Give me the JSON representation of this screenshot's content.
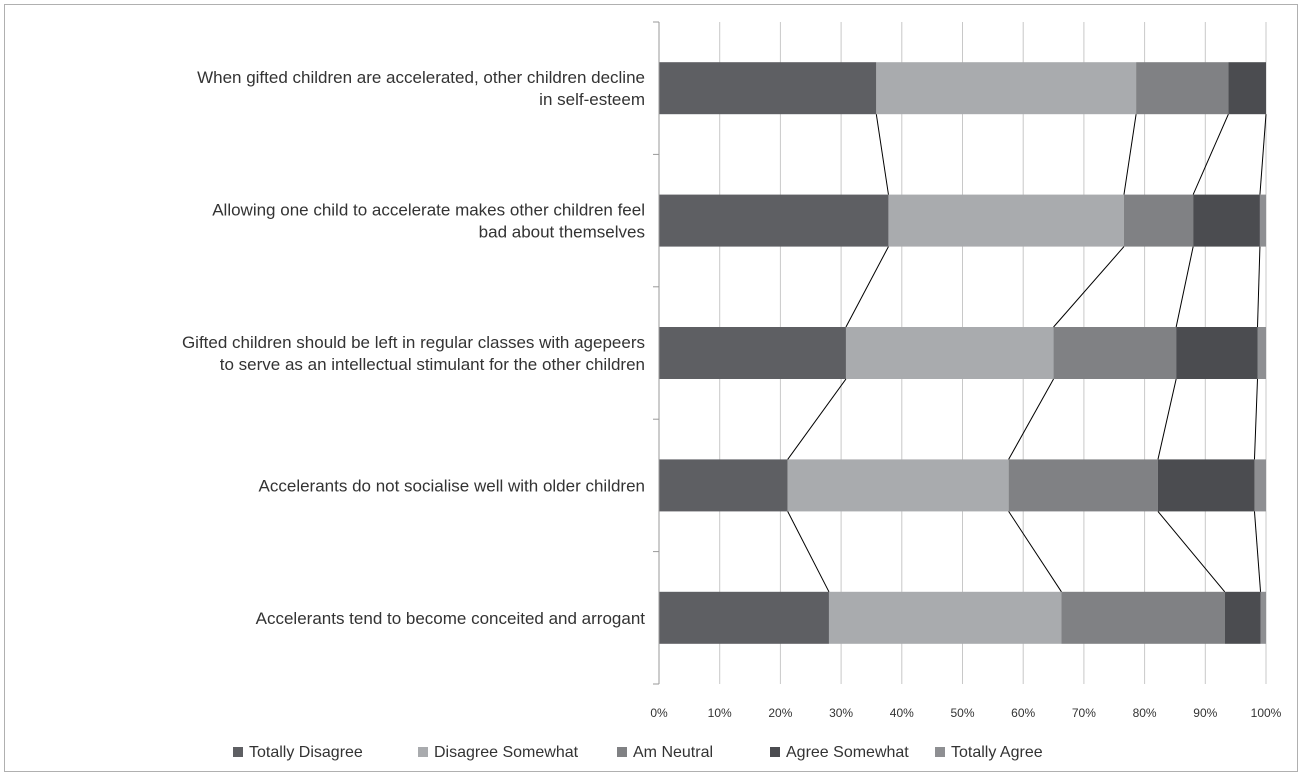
{
  "chart_data": {
    "type": "bar",
    "orientation": "horizontal",
    "stacked": "percent",
    "title": "",
    "xlabel": "",
    "ylabel": "",
    "xlim": [
      0,
      100
    ],
    "x_ticks": [
      "0%",
      "10%",
      "20%",
      "30%",
      "40%",
      "50%",
      "60%",
      "70%",
      "80%",
      "90%",
      "100%"
    ],
    "grid": "vertical",
    "legend_position": "bottom",
    "series_connector_lines": true,
    "categories": [
      [
        "When gifted children are accelerated, other children decline",
        "in self-esteem"
      ],
      [
        "Allowing one child to accelerate makes other children feel",
        "bad about themselves"
      ],
      [
        "Gifted children should be left in regular classes with agepeers",
        "to serve as an intellectual stimulant for the other children"
      ],
      [
        "Accelerants do not socialise well with older children"
      ],
      [
        "Accelerants tend to become conceited and arrogant"
      ]
    ],
    "series": [
      {
        "name": "Totally Disagree",
        "color": "#5e5f63",
        "values": [
          35.8,
          37.8,
          30.8,
          21.2,
          28.0
        ]
      },
      {
        "name": "Disagree Somewhat",
        "color": "#a9abae",
        "values": [
          42.8,
          38.8,
          34.2,
          36.4,
          38.3
        ]
      },
      {
        "name": "Am Neutral",
        "color": "#808184",
        "values": [
          15.2,
          11.4,
          20.2,
          24.6,
          26.9
        ]
      },
      {
        "name": "Agree Somewhat",
        "color": "#4b4c50",
        "values": [
          6.2,
          11.0,
          13.4,
          15.9,
          5.9
        ]
      },
      {
        "name": "Totally Agree",
        "color": "#8e8f92",
        "values": [
          0.0,
          1.0,
          1.4,
          1.9,
          0.9
        ]
      }
    ]
  }
}
